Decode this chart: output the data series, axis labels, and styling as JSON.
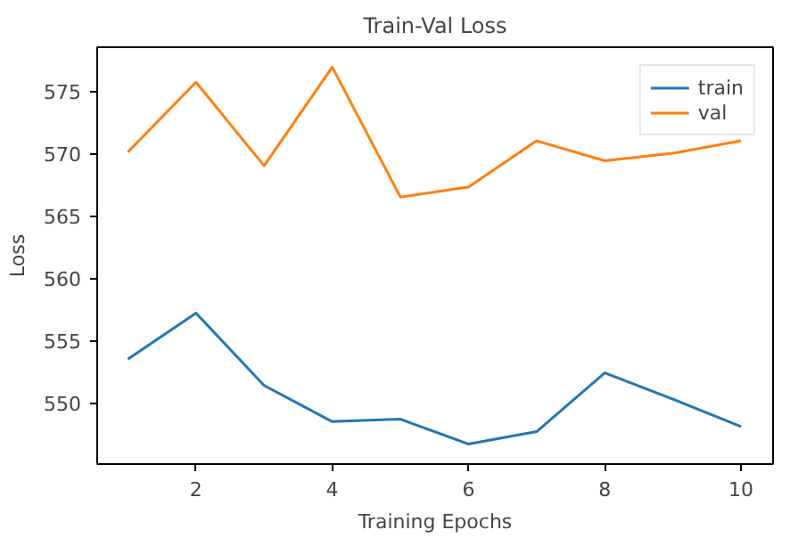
{
  "chart_data": {
    "type": "line",
    "title": "Train-Val Loss",
    "xlabel": "Training Epochs",
    "ylabel": "Loss",
    "x": [
      1,
      2,
      3,
      4,
      5,
      6,
      7,
      8,
      9,
      10
    ],
    "series": [
      {
        "name": "train",
        "color": "#1f77b4",
        "values": [
          553.5,
          557.2,
          551.4,
          548.5,
          548.7,
          546.7,
          547.7,
          552.4,
          550.3,
          548.1
        ]
      },
      {
        "name": "val",
        "color": "#ff7f0e",
        "values": [
          570.1,
          575.7,
          569.0,
          576.9,
          566.5,
          567.3,
          571.0,
          569.4,
          570.0,
          571.0
        ]
      }
    ],
    "xlim": [
      0.55,
      10.47
    ],
    "ylim": [
      545.1,
      578.5
    ],
    "xticks": [
      2,
      4,
      6,
      8,
      10
    ],
    "yticks": [
      550,
      555,
      560,
      565,
      570,
      575
    ],
    "grid": false,
    "legend": "top right",
    "line_style": "solid",
    "marker": "none"
  }
}
